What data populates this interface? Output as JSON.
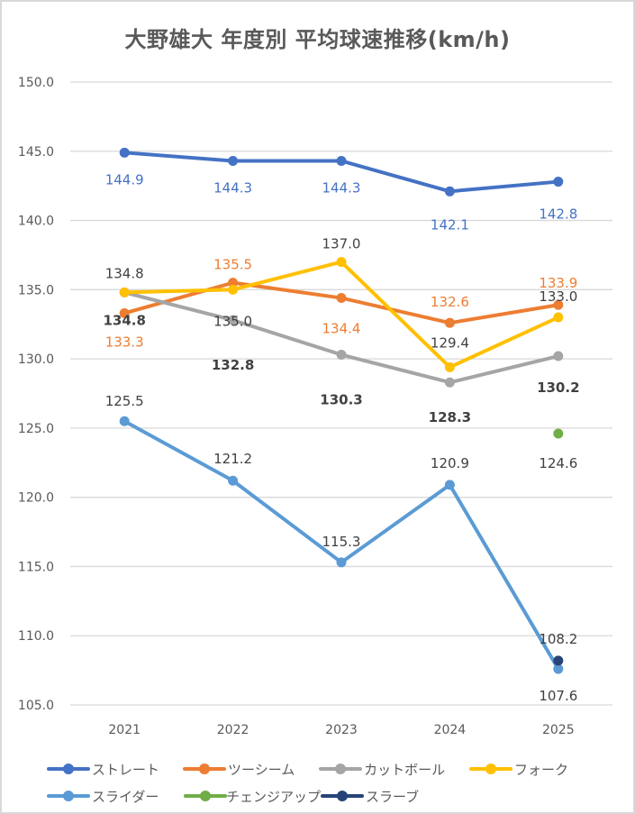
{
  "chart_data": {
    "type": "line",
    "title": "大野雄大 年度別 平均球速推移(km/h)",
    "xlabel": "",
    "ylabel": "",
    "categories": [
      "2021",
      "2022",
      "2023",
      "2024",
      "2025"
    ],
    "ylim": [
      105.0,
      150.0
    ],
    "yticks": [
      "150.0",
      "145.0",
      "140.0",
      "135.0",
      "130.0",
      "125.0",
      "120.0",
      "115.0",
      "110.0",
      "105.0"
    ],
    "grid": true,
    "legend_position": "bottom",
    "series": [
      {
        "name": "ストレート",
        "color": "#4472C4",
        "values": [
          144.9,
          144.3,
          144.3,
          142.1,
          142.8
        ],
        "labels": [
          "144.9",
          "144.3",
          "144.3",
          "142.1",
          "142.8"
        ],
        "label_color": "#4472C4",
        "label_bold": false
      },
      {
        "name": "ツーシーム",
        "color": "#ED7D31",
        "values": [
          133.3,
          135.5,
          134.4,
          132.6,
          133.9
        ],
        "labels": [
          "133.3",
          "135.5",
          "134.4",
          "132.6",
          "133.9"
        ],
        "label_color": "#ED7D31",
        "label_bold": false
      },
      {
        "name": "カットボール",
        "color": "#A5A5A5",
        "values": [
          134.8,
          132.8,
          130.3,
          128.3,
          130.2
        ],
        "labels": [
          "134.8",
          "132.8",
          "130.3",
          "128.3",
          "130.2"
        ],
        "label_color": "#404040",
        "label_bold": true
      },
      {
        "name": "フォーク",
        "color": "#FFC000",
        "values": [
          134.8,
          135.0,
          137.0,
          129.4,
          133.0
        ],
        "labels": [
          "134.8",
          "135.0",
          "137.0",
          "129.4",
          "133.0"
        ],
        "label_color": "#404040",
        "label_bold": false
      },
      {
        "name": "スライダー",
        "color": "#5B9BD5",
        "values": [
          125.5,
          121.2,
          115.3,
          120.9,
          107.6
        ],
        "labels": [
          "125.5",
          "121.2",
          "115.3",
          "120.9",
          "107.6"
        ],
        "label_color": "#404040",
        "label_bold": false
      },
      {
        "name": "チェンジアップ",
        "color": "#70AD47",
        "values": [
          null,
          null,
          null,
          null,
          124.6
        ],
        "labels": [
          null,
          null,
          null,
          null,
          "124.6"
        ],
        "label_color": "#404040",
        "label_bold": false
      },
      {
        "name": "スラーブ",
        "color": "#264478",
        "values": [
          null,
          null,
          null,
          null,
          108.2
        ],
        "labels": [
          null,
          null,
          null,
          null,
          "108.2"
        ],
        "label_color": "#404040",
        "label_bold": false
      }
    ]
  }
}
